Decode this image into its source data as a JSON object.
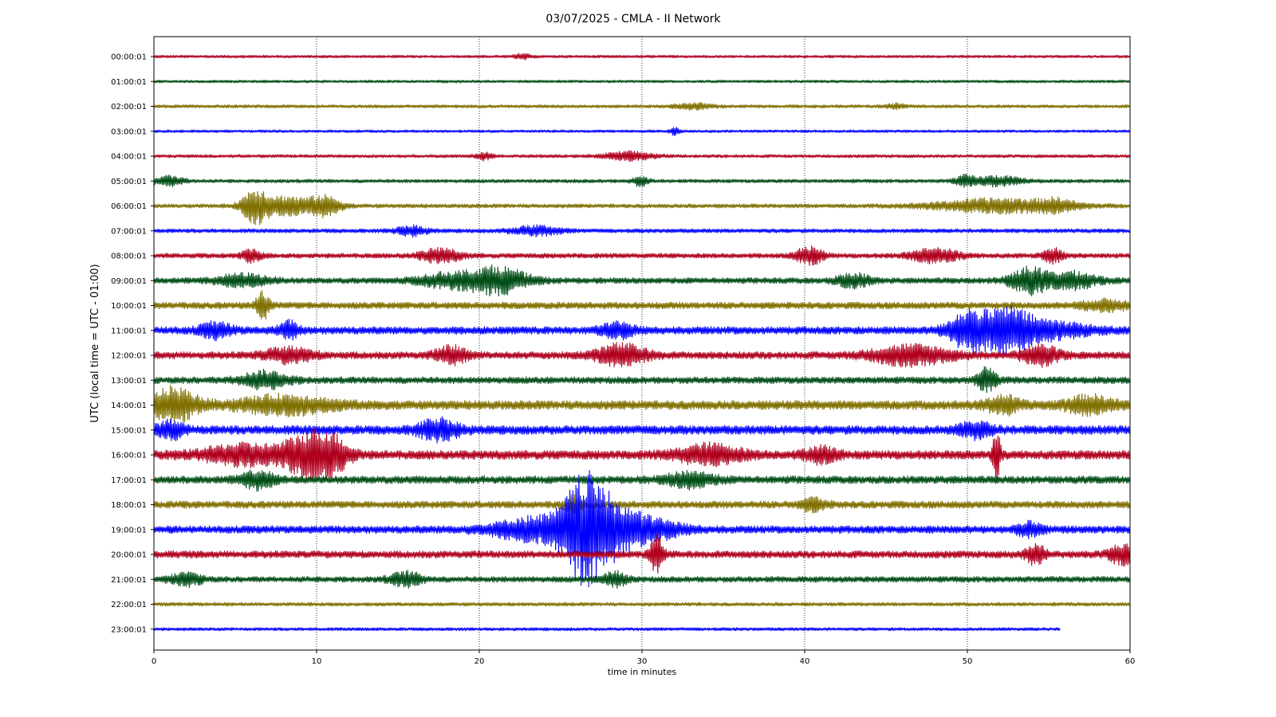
{
  "chart_data": {
    "type": "line",
    "title": "03/07/2025 - CMLA - II Network",
    "xlabel": "time in minutes",
    "ylabel": "UTC (local time = UTC - 01:00)",
    "xlim": [
      0,
      60
    ],
    "x_ticks": [
      0,
      10,
      20,
      30,
      40,
      50,
      60
    ],
    "vertical_gridlines": [
      10,
      20,
      30,
      40,
      50
    ],
    "grid_style": "dotted",
    "legend": "none",
    "trace_colors": [
      "#b0001e",
      "#004d16",
      "#807000",
      "#0000ff"
    ],
    "rows": [
      {
        "label": "00:00:01",
        "noise": 0.06,
        "end_minute": 60,
        "events": [
          {
            "t": 22.7,
            "amp": 0.12,
            "dur": 0.5
          }
        ]
      },
      {
        "label": "01:00:01",
        "noise": 0.06,
        "end_minute": 60,
        "events": []
      },
      {
        "label": "02:00:01",
        "noise": 0.07,
        "end_minute": 60,
        "events": [
          {
            "t": 33.2,
            "amp": 0.12,
            "dur": 1.2
          },
          {
            "t": 45.6,
            "amp": 0.1,
            "dur": 0.6
          }
        ]
      },
      {
        "label": "03:00:01",
        "noise": 0.06,
        "end_minute": 60,
        "events": [
          {
            "t": 32.0,
            "amp": 0.15,
            "dur": 0.3
          }
        ]
      },
      {
        "label": "04:00:01",
        "noise": 0.07,
        "end_minute": 60,
        "events": [
          {
            "t": 20.3,
            "amp": 0.15,
            "dur": 0.5
          },
          {
            "t": 29.2,
            "amp": 0.18,
            "dur": 1.5
          }
        ]
      },
      {
        "label": "05:00:01",
        "noise": 0.08,
        "end_minute": 60,
        "events": [
          {
            "t": 0.9,
            "amp": 0.2,
            "dur": 1.0
          },
          {
            "t": 29.9,
            "amp": 0.2,
            "dur": 0.5
          },
          {
            "t": 49.8,
            "amp": 0.2,
            "dur": 0.6
          },
          {
            "t": 51.8,
            "amp": 0.2,
            "dur": 1.5
          }
        ]
      },
      {
        "label": "06:00:01",
        "noise": 0.09,
        "end_minute": 60,
        "events": [
          {
            "t": 6.2,
            "amp": 0.7,
            "dur": 0.8
          },
          {
            "t": 8.1,
            "amp": 0.4,
            "dur": 1.6
          },
          {
            "t": 10.5,
            "amp": 0.4,
            "dur": 1.0
          },
          {
            "t": 52.0,
            "amp": 0.3,
            "dur": 4.0
          },
          {
            "t": 55.5,
            "amp": 0.2,
            "dur": 1.0
          }
        ]
      },
      {
        "label": "07:00:01",
        "noise": 0.09,
        "end_minute": 60,
        "events": [
          {
            "t": 15.8,
            "amp": 0.2,
            "dur": 1.0
          },
          {
            "t": 23.5,
            "amp": 0.2,
            "dur": 1.5
          }
        ]
      },
      {
        "label": "08:00:01",
        "noise": 0.11,
        "end_minute": 60,
        "events": [
          {
            "t": 6.0,
            "amp": 0.25,
            "dur": 0.6
          },
          {
            "t": 17.6,
            "amp": 0.3,
            "dur": 1.2
          },
          {
            "t": 40.3,
            "amp": 0.4,
            "dur": 0.8
          },
          {
            "t": 48.0,
            "amp": 0.3,
            "dur": 1.5
          },
          {
            "t": 55.3,
            "amp": 0.3,
            "dur": 0.6
          }
        ]
      },
      {
        "label": "09:00:01",
        "noise": 0.13,
        "end_minute": 60,
        "events": [
          {
            "t": 5.5,
            "amp": 0.25,
            "dur": 1.6
          },
          {
            "t": 18.2,
            "amp": 0.3,
            "dur": 2.0
          },
          {
            "t": 21.2,
            "amp": 0.55,
            "dur": 1.8
          },
          {
            "t": 43.0,
            "amp": 0.3,
            "dur": 1.0
          },
          {
            "t": 53.8,
            "amp": 0.55,
            "dur": 1.2
          },
          {
            "t": 56.5,
            "amp": 0.35,
            "dur": 1.5
          }
        ]
      },
      {
        "label": "10:00:01",
        "noise": 0.15,
        "end_minute": 60,
        "events": [
          {
            "t": 6.7,
            "amp": 0.6,
            "dur": 0.4
          },
          {
            "t": 58.5,
            "amp": 0.2,
            "dur": 1.5
          }
        ]
      },
      {
        "label": "11:00:01",
        "noise": 0.17,
        "end_minute": 60,
        "events": [
          {
            "t": 3.8,
            "amp": 0.3,
            "dur": 1.0
          },
          {
            "t": 8.3,
            "amp": 0.35,
            "dur": 0.6
          },
          {
            "t": 28.5,
            "amp": 0.3,
            "dur": 1.0
          },
          {
            "t": 50.0,
            "amp": 0.8,
            "dur": 1.2
          },
          {
            "t": 52.4,
            "amp": 0.85,
            "dur": 1.5
          },
          {
            "t": 55.0,
            "amp": 0.35,
            "dur": 2.5
          }
        ]
      },
      {
        "label": "12:00:01",
        "noise": 0.16,
        "end_minute": 60,
        "events": [
          {
            "t": 8.3,
            "amp": 0.3,
            "dur": 1.5
          },
          {
            "t": 18.3,
            "amp": 0.35,
            "dur": 1.0
          },
          {
            "t": 28.7,
            "amp": 0.45,
            "dur": 1.6
          },
          {
            "t": 46.5,
            "amp": 0.4,
            "dur": 2.5
          },
          {
            "t": 54.5,
            "amp": 0.4,
            "dur": 1.2
          }
        ]
      },
      {
        "label": "13:00:01",
        "noise": 0.15,
        "end_minute": 60,
        "events": [
          {
            "t": 6.8,
            "amp": 0.35,
            "dur": 1.5
          },
          {
            "t": 51.2,
            "amp": 0.5,
            "dur": 0.6
          }
        ]
      },
      {
        "label": "14:00:01",
        "noise": 0.2,
        "end_minute": 60,
        "events": [
          {
            "t": 1.2,
            "amp": 0.7,
            "dur": 1.5
          },
          {
            "t": 8.0,
            "amp": 0.35,
            "dur": 3.0
          },
          {
            "t": 52.2,
            "amp": 0.35,
            "dur": 1.0
          },
          {
            "t": 57.5,
            "amp": 0.35,
            "dur": 1.5
          }
        ]
      },
      {
        "label": "15:00:01",
        "noise": 0.2,
        "end_minute": 60,
        "events": [
          {
            "t": 1.0,
            "amp": 0.35,
            "dur": 0.8
          },
          {
            "t": 17.5,
            "amp": 0.45,
            "dur": 1.2
          },
          {
            "t": 50.5,
            "amp": 0.3,
            "dur": 1.0
          }
        ]
      },
      {
        "label": "16:00:01",
        "noise": 0.2,
        "end_minute": 60,
        "events": [
          {
            "t": 5.5,
            "amp": 0.4,
            "dur": 2.5
          },
          {
            "t": 9.3,
            "amp": 0.7,
            "dur": 1.5
          },
          {
            "t": 10.8,
            "amp": 0.75,
            "dur": 1.2
          },
          {
            "t": 34.2,
            "amp": 0.4,
            "dur": 2.0
          },
          {
            "t": 41.0,
            "amp": 0.3,
            "dur": 1.0
          },
          {
            "t": 51.8,
            "amp": 0.95,
            "dur": 0.25
          }
        ]
      },
      {
        "label": "17:00:01",
        "noise": 0.17,
        "end_minute": 60,
        "events": [
          {
            "t": 6.4,
            "amp": 0.35,
            "dur": 1.0
          },
          {
            "t": 33.0,
            "amp": 0.3,
            "dur": 1.5
          }
        ]
      },
      {
        "label": "18:00:01",
        "noise": 0.16,
        "end_minute": 60,
        "events": [
          {
            "t": 25.8,
            "amp": 0.35,
            "dur": 0.5
          },
          {
            "t": 40.5,
            "amp": 0.25,
            "dur": 0.8
          }
        ]
      },
      {
        "label": "19:00:01",
        "noise": 0.17,
        "end_minute": 60,
        "events": [
          {
            "t": 24.0,
            "amp": 0.55,
            "dur": 3.0
          },
          {
            "t": 26.4,
            "amp": 1.6,
            "dur": 1.2
          },
          {
            "t": 27.8,
            "amp": 1.1,
            "dur": 1.8
          },
          {
            "t": 30.5,
            "amp": 0.4,
            "dur": 2.0
          },
          {
            "t": 53.8,
            "amp": 0.25,
            "dur": 0.8
          }
        ]
      },
      {
        "label": "20:00:01",
        "noise": 0.16,
        "end_minute": 60,
        "events": [
          {
            "t": 30.9,
            "amp": 0.8,
            "dur": 0.4
          },
          {
            "t": 54.2,
            "amp": 0.4,
            "dur": 0.6
          },
          {
            "t": 59.5,
            "amp": 0.4,
            "dur": 0.8
          }
        ]
      },
      {
        "label": "21:00:01",
        "noise": 0.13,
        "end_minute": 60,
        "events": [
          {
            "t": 2.0,
            "amp": 0.25,
            "dur": 1.0
          },
          {
            "t": 15.5,
            "amp": 0.3,
            "dur": 1.0
          },
          {
            "t": 28.3,
            "amp": 0.3,
            "dur": 0.8
          }
        ]
      },
      {
        "label": "22:00:01",
        "noise": 0.08,
        "end_minute": 60,
        "events": []
      },
      {
        "label": "23:00:01",
        "noise": 0.07,
        "end_minute": 55.7,
        "events": []
      }
    ]
  }
}
